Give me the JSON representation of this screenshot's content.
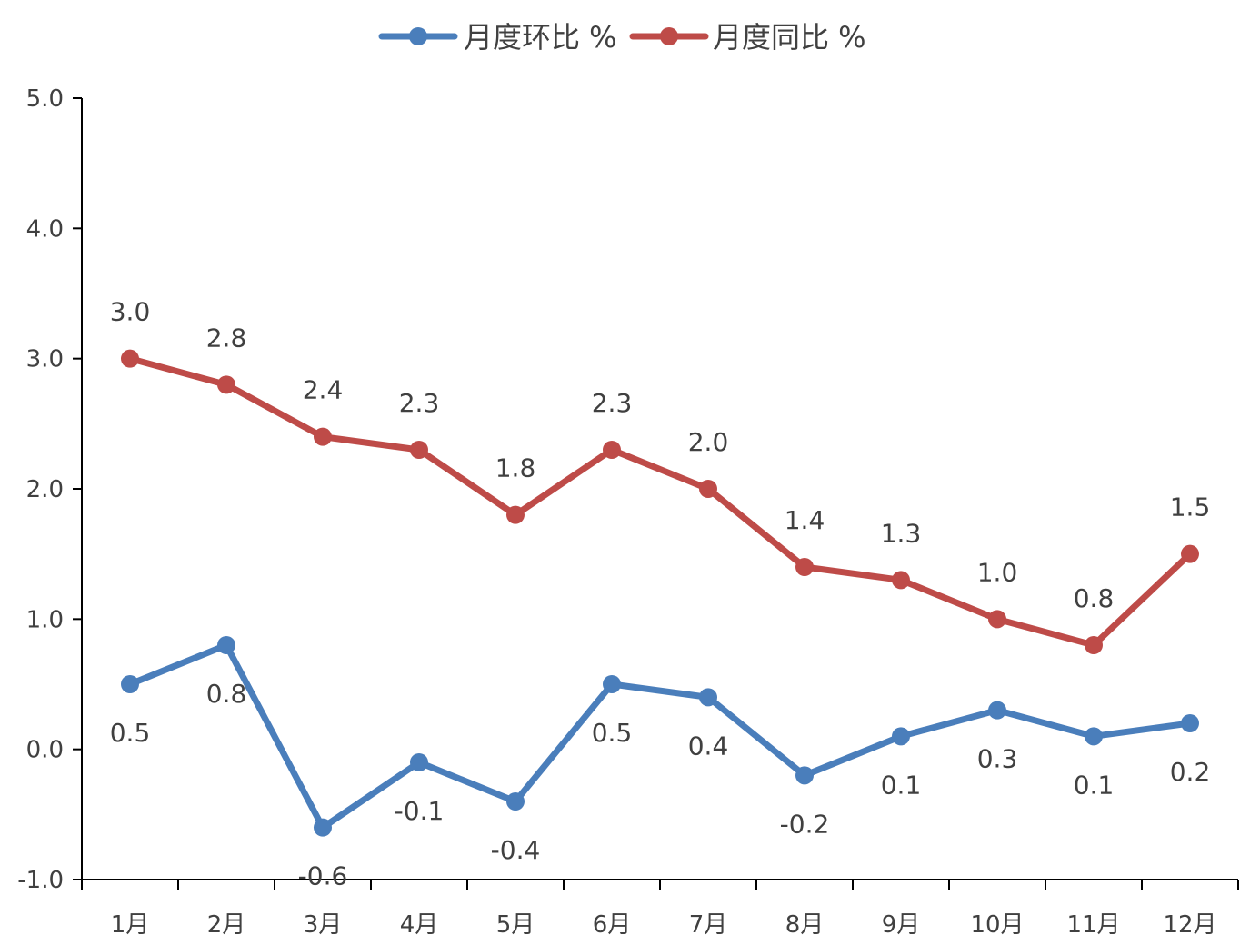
{
  "chart_data": {
    "type": "line",
    "categories": [
      "1月",
      "2月",
      "3月",
      "4月",
      "5月",
      "6月",
      "7月",
      "8月",
      "9月",
      "10月",
      "11月",
      "12月"
    ],
    "series": [
      {
        "name": "月度环比 %",
        "color": "#4a7ebb",
        "values": [
          0.5,
          0.8,
          -0.6,
          -0.1,
          -0.4,
          0.5,
          0.4,
          -0.2,
          0.1,
          0.3,
          0.1,
          0.2
        ],
        "labels": [
          "0.5",
          "0.8",
          "-0.6",
          "-0.1",
          "-0.4",
          "0.5",
          "0.4",
          "-0.2",
          "0.1",
          "0.3",
          "0.1",
          "0.2"
        ]
      },
      {
        "name": "月度同比 %",
        "color": "#be4b48",
        "values": [
          3.0,
          2.8,
          2.4,
          2.3,
          1.8,
          2.3,
          2.0,
          1.4,
          1.3,
          1.0,
          0.8,
          1.5
        ],
        "labels": [
          "3.0",
          "2.8",
          "2.4",
          "2.3",
          "1.8",
          "2.3",
          "2.0",
          "1.4",
          "1.3",
          "1.0",
          "0.8",
          "1.5"
        ]
      }
    ],
    "yticks": [
      "5.0",
      "4.0",
      "3.0",
      "2.0",
      "1.0",
      "0.0",
      "-1.0"
    ],
    "ylim": [
      -1.0,
      5.0
    ],
    "title": "",
    "xlabel": "",
    "ylabel": "",
    "grid": false,
    "legend": "top"
  }
}
